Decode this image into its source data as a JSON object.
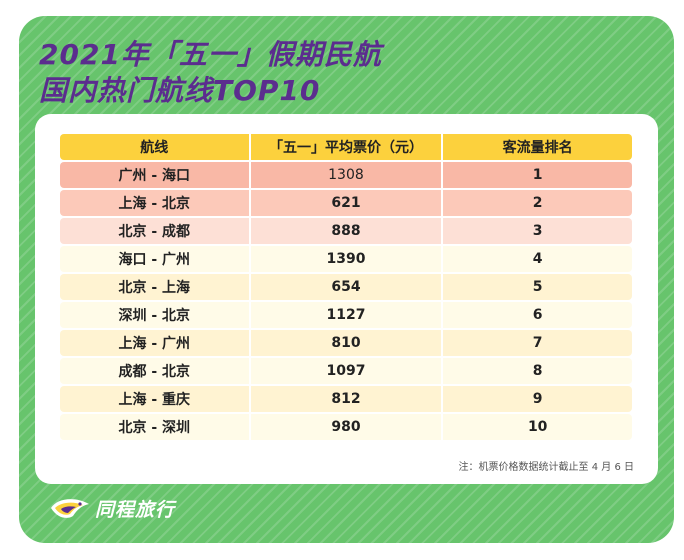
{
  "title": {
    "line1": "2021年「五一」假期民航",
    "line2": "国内热门航线TOP10"
  },
  "table": {
    "headers": [
      "航线",
      "「五一」平均票价（元）",
      "客流量排名"
    ],
    "rows": [
      {
        "route": "广州 - 海口",
        "fare": "1308",
        "rank": "1"
      },
      {
        "route": "上海 - 北京",
        "fare": "621",
        "rank": "2"
      },
      {
        "route": "北京 - 成都",
        "fare": "888",
        "rank": "3"
      },
      {
        "route": "海口 - 广州",
        "fare": "1390",
        "rank": "4"
      },
      {
        "route": "北京 - 上海",
        "fare": "654",
        "rank": "5"
      },
      {
        "route": "深圳 - 北京",
        "fare": "1127",
        "rank": "6"
      },
      {
        "route": "上海 - 广州",
        "fare": "810",
        "rank": "7"
      },
      {
        "route": "成都 - 北京",
        "fare": "1097",
        "rank": "8"
      },
      {
        "route": "上海 - 重庆",
        "fare": "812",
        "rank": "9"
      },
      {
        "route": "北京 - 深圳",
        "fare": "980",
        "rank": "10"
      }
    ]
  },
  "note": "注：机票价格数据统计截止至 4 月 6 日",
  "brand": {
    "name": "同程旅行",
    "logo_icon": "tongcheng-bird-logo"
  },
  "colors": {
    "background_green": "#67c46c",
    "title_purple": "#5b2d8e",
    "header_yellow": "#fcd13d",
    "top3_row_pink": "#f9b8a6",
    "row_cream": "#fffbe8"
  }
}
